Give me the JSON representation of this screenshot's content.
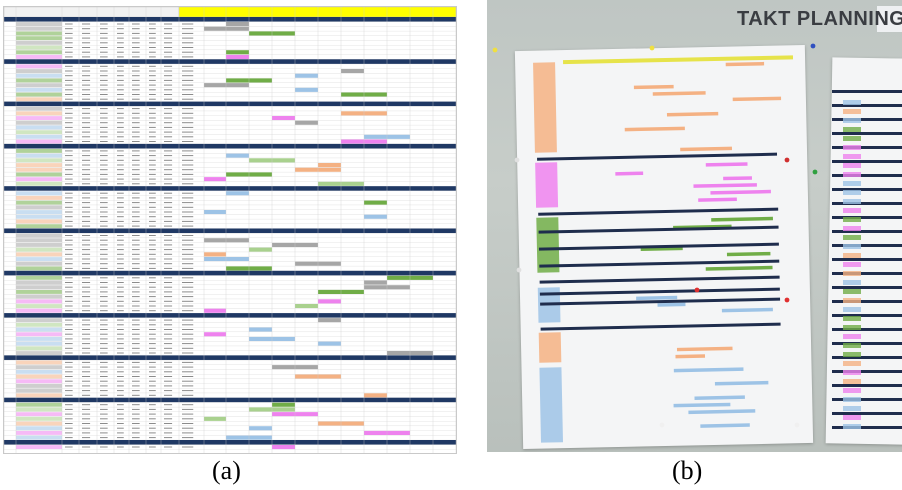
{
  "figure": {
    "caption_a": "(a)",
    "caption_b": "(b)"
  },
  "photo": {
    "title": "TAKT PLANNING"
  },
  "colors": {
    "header_band": "#1f3864",
    "header_yellow": "#ffff00",
    "orange": "#f4b183",
    "blue": "#9dc3e6",
    "gray": "#a6a6a6",
    "green": "#70ad47",
    "light_green": "#a9d18e",
    "magenta": "#ee82ee",
    "wall": "#c2c8c5",
    "paper": "#f4f5f6"
  }
}
